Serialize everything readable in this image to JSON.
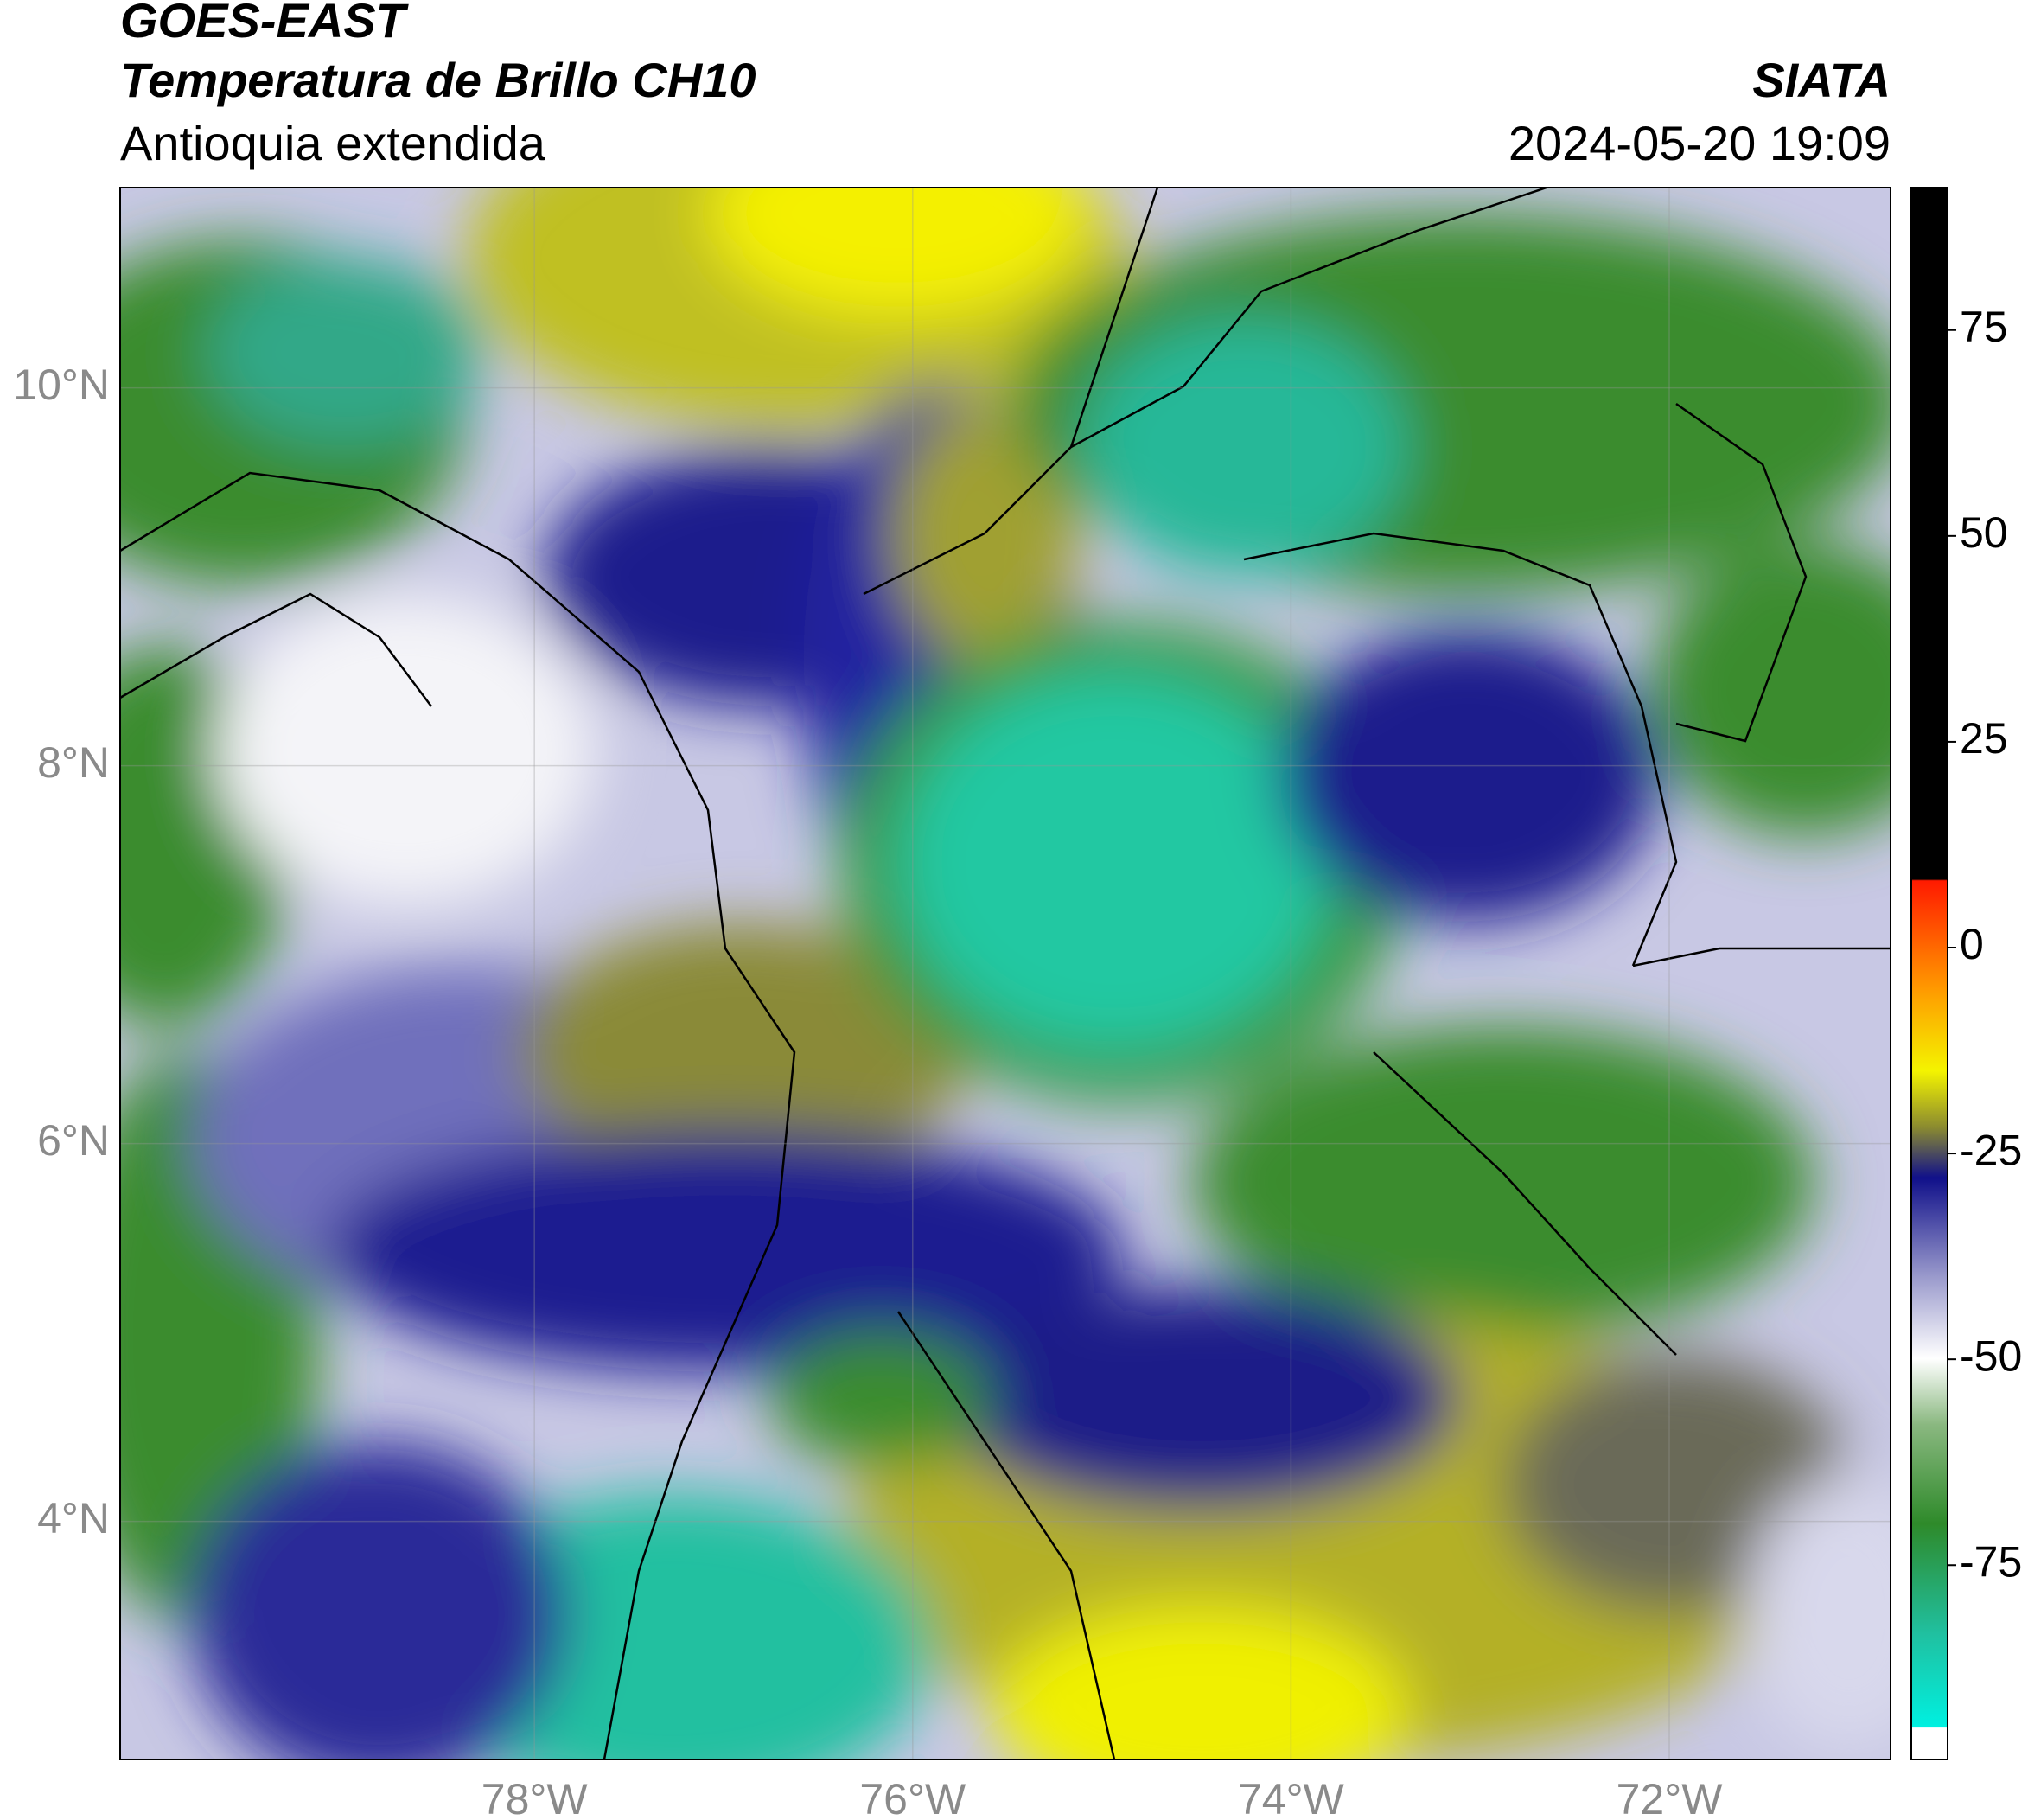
{
  "header": {
    "product": "GOES-EAST",
    "variable": "Temperatura de Brillo CH10",
    "region": "Antioquia extendida",
    "organization": "SIATA",
    "datetime": "2024-05-20 19:09"
  },
  "map": {
    "lonlim": [
      -80.19,
      -70.83
    ],
    "latlim": [
      2.74,
      11.06
    ],
    "lon_ticks": [
      {
        "value": -78,
        "label": "78°W"
      },
      {
        "value": -76,
        "label": "76°W"
      },
      {
        "value": -74,
        "label": "74°W"
      },
      {
        "value": -72,
        "label": "72°W"
      }
    ],
    "lat_ticks": [
      {
        "value": 4,
        "label": "4°N"
      },
      {
        "value": 6,
        "label": "6°N"
      },
      {
        "value": 8,
        "label": "8°N"
      },
      {
        "value": 10,
        "label": "10°N"
      }
    ]
  },
  "colorbar": {
    "clim": [
      -98.6,
      92.3
    ],
    "ticks": [
      -75,
      -50,
      -25,
      0,
      25,
      50,
      75
    ]
  }
}
